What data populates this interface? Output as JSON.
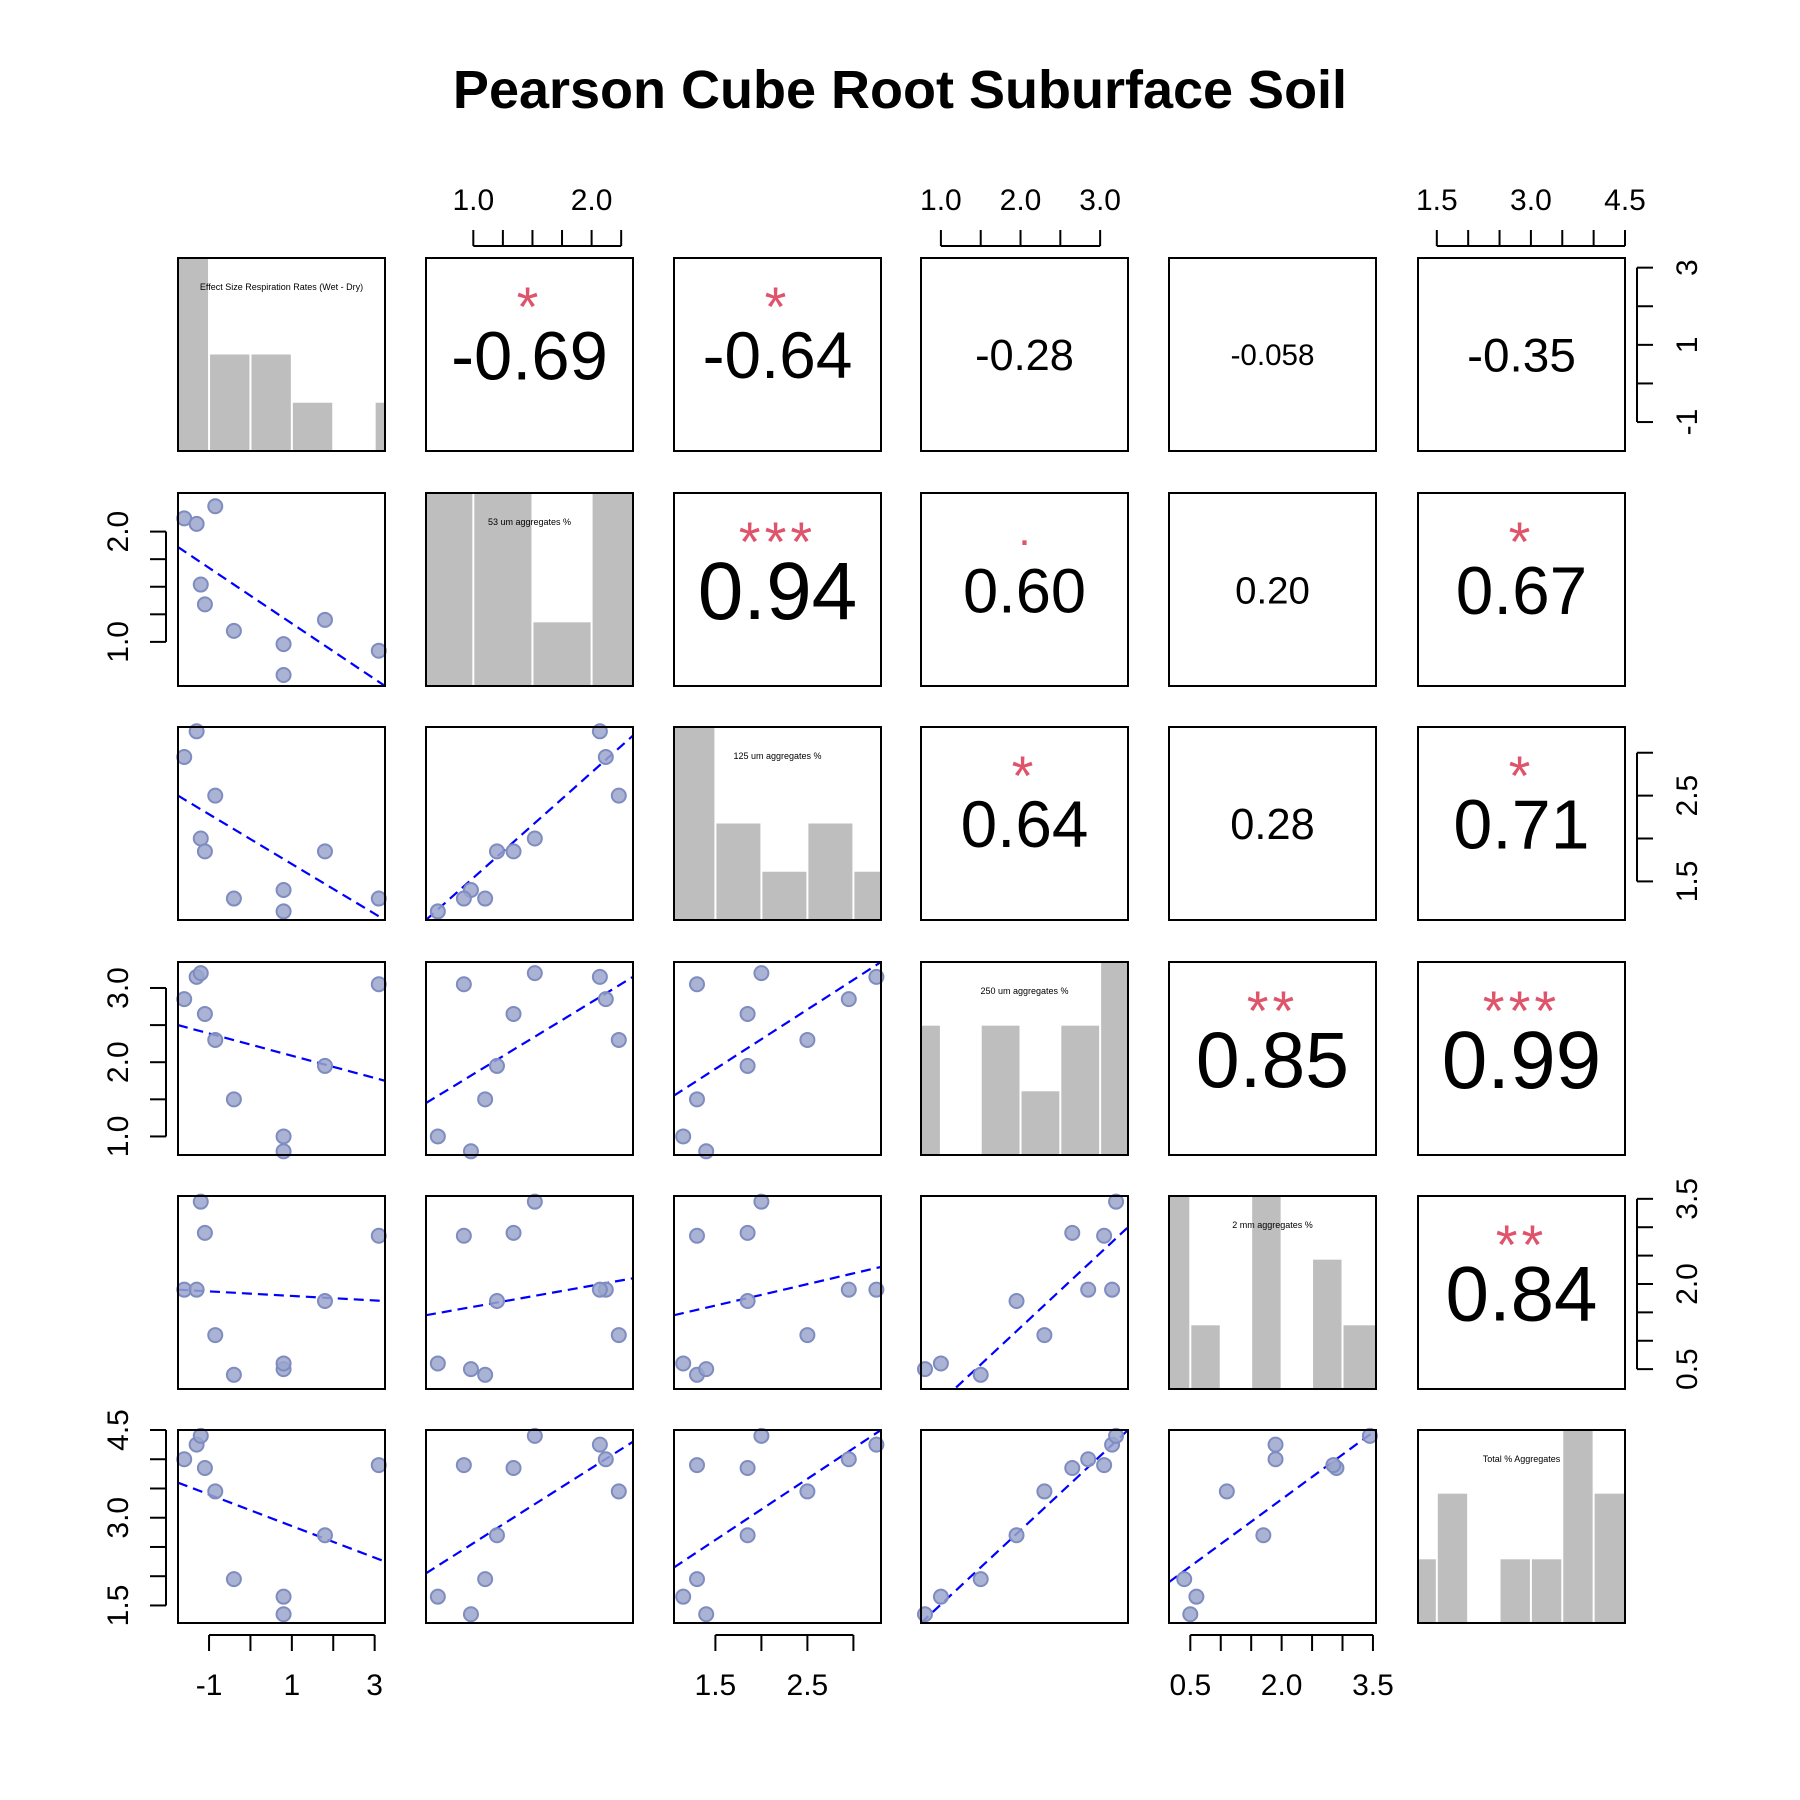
{
  "title": "Pearson Cube Root Suburface Soil",
  "colors": {
    "bar": "#BEBEBE",
    "point_fill": "#9BA6CC",
    "point_stroke": "#7E8CBF",
    "fit_line": "#0000FF",
    "stars": "#DF536B",
    "axis": "#000000"
  },
  "chart_data": {
    "type": "scatter",
    "subtype": "pairs-correlation-matrix",
    "variables": [
      "Effect Size Respiration Rates (Wet - Dry)",
      "53 um aggregates %",
      "125 um aggregates %",
      "250 um aggregates %",
      "2 mm aggregates %",
      "Total % Aggregates"
    ],
    "ranges": [
      [
        -1.75,
        3.25
      ],
      [
        0.6,
        2.35
      ],
      [
        1.05,
        3.3
      ],
      [
        0.75,
        3.35
      ],
      [
        0.15,
        3.55
      ],
      [
        1.2,
        4.5
      ]
    ],
    "axis_ticks": {
      "top": [
        {
          "col": 1,
          "ticks": [
            1.0,
            1.25,
            1.5,
            1.75,
            2.0,
            2.25
          ],
          "labels": [
            "1.0",
            "2.0"
          ],
          "label_values": [
            1.0,
            2.0
          ]
        },
        {
          "col": 3,
          "ticks": [
            1.0,
            1.5,
            2.0,
            2.5,
            3.0
          ],
          "labels": [
            "1.0",
            "2.0",
            "3.0"
          ],
          "label_values": [
            1.0,
            2.0,
            3.0
          ]
        },
        {
          "col": 5,
          "ticks": [
            1.5,
            2.0,
            2.5,
            3.0,
            3.5,
            4.0,
            4.5
          ],
          "labels": [
            "1.5",
            "3.0",
            "4.5"
          ],
          "label_values": [
            1.5,
            3.0,
            4.5
          ]
        }
      ],
      "right": [
        {
          "row": 0,
          "ticks": [
            -1,
            0,
            1,
            2,
            3
          ],
          "labels": [
            "-1",
            "1",
            "3"
          ],
          "label_values": [
            -1,
            1,
            3
          ]
        },
        {
          "row": 2,
          "ticks": [
            1.5,
            2.0,
            2.5,
            3.0
          ],
          "labels": [
            "1.5",
            "2.5"
          ],
          "label_values": [
            1.5,
            2.5
          ]
        },
        {
          "row": 4,
          "ticks": [
            0.5,
            1.0,
            1.5,
            2.0,
            2.5,
            3.0,
            3.5
          ],
          "labels": [
            "0.5",
            "2.0",
            "3.5"
          ],
          "label_values": [
            0.5,
            2.0,
            3.5
          ]
        }
      ],
      "bottom": [
        {
          "col": 0,
          "ticks": [
            -1,
            0,
            1,
            2,
            3
          ],
          "labels": [
            "-1",
            "1",
            "3"
          ],
          "label_values": [
            -1,
            1,
            3
          ]
        },
        {
          "col": 2,
          "ticks": [
            1.5,
            2.0,
            2.5,
            3.0
          ],
          "labels": [
            "1.5",
            "2.5"
          ],
          "label_values": [
            1.5,
            2.5
          ]
        },
        {
          "col": 4,
          "ticks": [
            0.5,
            1.0,
            1.5,
            2.0,
            2.5,
            3.0,
            3.5
          ],
          "labels": [
            "0.5",
            "2.0",
            "3.5"
          ],
          "label_values": [
            0.5,
            2.0,
            3.5
          ]
        }
      ],
      "left": [
        {
          "row": 1,
          "ticks": [
            1.0,
            1.25,
            1.5,
            1.75,
            2.0
          ],
          "labels": [
            "1.0",
            "2.0"
          ],
          "label_values": [
            1.0,
            2.0
          ]
        },
        {
          "row": 3,
          "ticks": [
            1.0,
            1.5,
            2.0,
            2.5,
            3.0
          ],
          "labels": [
            "1.0",
            "2.0",
            "3.0"
          ],
          "label_values": [
            1.0,
            2.0,
            3.0
          ]
        },
        {
          "row": 5,
          "ticks": [
            1.5,
            2.0,
            2.5,
            3.0,
            3.5,
            4.0,
            4.5
          ],
          "labels": [
            "1.5",
            "3.0",
            "4.5"
          ],
          "label_values": [
            1.5,
            3.0,
            4.5
          ]
        }
      ]
    },
    "observations": [
      [
        -1.6,
        2.12,
        2.95,
        2.85,
        1.9,
        4.0
      ],
      [
        -1.3,
        2.07,
        3.25,
        3.15,
        1.9,
        4.25
      ],
      [
        -1.2,
        1.52,
        2.0,
        3.2,
        3.45,
        4.4
      ],
      [
        -1.1,
        1.34,
        1.85,
        2.65,
        2.9,
        3.85
      ],
      [
        -0.85,
        2.23,
        2.5,
        2.3,
        1.1,
        3.45
      ],
      [
        -0.4,
        1.1,
        1.3,
        1.5,
        0.4,
        1.95
      ],
      [
        0.8,
        0.98,
        1.4,
        0.8,
        0.5,
        1.35
      ],
      [
        0.8,
        0.7,
        1.15,
        1.0,
        0.6,
        1.65
      ],
      [
        1.8,
        1.2,
        1.85,
        1.95,
        1.7,
        2.7
      ],
      [
        3.1,
        0.92,
        1.3,
        3.05,
        2.85,
        3.9
      ]
    ],
    "fit_lines": [
      {
        "row": 1,
        "col": 0,
        "y_at_xmin": 1.86,
        "y_at_xmax": 0.6
      },
      {
        "row": 2,
        "col": 0,
        "y_at_xmin": 2.5,
        "y_at_xmax": 1.05
      },
      {
        "row": 2,
        "col": 1,
        "y_at_xmin": 1.05,
        "y_at_xmax": 3.2
      },
      {
        "row": 3,
        "col": 0,
        "y_at_xmin": 2.5,
        "y_at_xmax": 1.75
      },
      {
        "row": 3,
        "col": 1,
        "y_at_xmin": 1.45,
        "y_at_xmax": 3.15
      },
      {
        "row": 3,
        "col": 2,
        "y_at_xmin": 1.55,
        "y_at_xmax": 3.35
      },
      {
        "row": 4,
        "col": 0,
        "y_at_xmin": 1.9,
        "y_at_xmax": 1.7
      },
      {
        "row": 4,
        "col": 1,
        "y_at_xmin": 1.45,
        "y_at_xmax": 2.1
      },
      {
        "row": 4,
        "col": 2,
        "y_at_xmin": 1.45,
        "y_at_xmax": 2.3
      },
      {
        "row": 4,
        "col": 3,
        "y_at_xmin": -0.4,
        "y_at_xmax": 3.0
      },
      {
        "row": 5,
        "col": 0,
        "y_at_xmin": 3.6,
        "y_at_xmax": 2.25
      },
      {
        "row": 5,
        "col": 1,
        "y_at_xmin": 2.05,
        "y_at_xmax": 4.3
      },
      {
        "row": 5,
        "col": 2,
        "y_at_xmin": 2.15,
        "y_at_xmax": 4.5
      },
      {
        "row": 5,
        "col": 3,
        "y_at_xmin": 1.2,
        "y_at_xmax": 4.5
      },
      {
        "row": 5,
        "col": 4,
        "y_at_xmin": 1.9,
        "y_at_xmax": 4.5
      }
    ],
    "correlations": [
      {
        "row": 0,
        "col": 1,
        "r": "-0.69",
        "stars": "*"
      },
      {
        "row": 0,
        "col": 2,
        "r": "-0.64",
        "stars": "*"
      },
      {
        "row": 0,
        "col": 3,
        "r": "-0.28",
        "stars": ""
      },
      {
        "row": 0,
        "col": 4,
        "r": "-0.058",
        "stars": ""
      },
      {
        "row": 0,
        "col": 5,
        "r": "-0.35",
        "stars": ""
      },
      {
        "row": 1,
        "col": 2,
        "r": "0.94",
        "stars": "***"
      },
      {
        "row": 1,
        "col": 3,
        "r": "0.60",
        "stars": "."
      },
      {
        "row": 1,
        "col": 4,
        "r": "0.20",
        "stars": ""
      },
      {
        "row": 1,
        "col": 5,
        "r": "0.67",
        "stars": "*"
      },
      {
        "row": 2,
        "col": 3,
        "r": "0.64",
        "stars": "*"
      },
      {
        "row": 2,
        "col": 4,
        "r": "0.28",
        "stars": ""
      },
      {
        "row": 2,
        "col": 5,
        "r": "0.71",
        "stars": "*"
      },
      {
        "row": 3,
        "col": 4,
        "r": "0.85",
        "stars": "**"
      },
      {
        "row": 3,
        "col": 5,
        "r": "0.99",
        "stars": "***"
      },
      {
        "row": 4,
        "col": 5,
        "r": "0.84",
        "stars": "**"
      }
    ],
    "histograms": [
      {
        "bars": [
          {
            "x0": -1.75,
            "x1": -1.0,
            "h": 1.0
          },
          {
            "x0": -1.0,
            "x1": 0.0,
            "h": 0.5
          },
          {
            "x0": 0.0,
            "x1": 1.0,
            "h": 0.5
          },
          {
            "x0": 1.0,
            "x1": 2.0,
            "h": 0.25
          },
          {
            "x0": 3.0,
            "x1": 3.25,
            "h": 0.25
          }
        ]
      },
      {
        "bars": [
          {
            "x0": 0.6,
            "x1": 1.0,
            "h": 1.0
          },
          {
            "x0": 1.0,
            "x1": 1.5,
            "h": 1.0
          },
          {
            "x0": 1.5,
            "x1": 2.0,
            "h": 0.33
          },
          {
            "x0": 2.0,
            "x1": 2.35,
            "h": 1.0
          }
        ]
      },
      {
        "bars": [
          {
            "x0": 1.05,
            "x1": 1.5,
            "h": 1.0
          },
          {
            "x0": 1.5,
            "x1": 2.0,
            "h": 0.5
          },
          {
            "x0": 2.0,
            "x1": 2.5,
            "h": 0.25
          },
          {
            "x0": 2.5,
            "x1": 3.0,
            "h": 0.5
          },
          {
            "x0": 3.0,
            "x1": 3.3,
            "h": 0.25
          }
        ]
      },
      {
        "bars": [
          {
            "x0": 0.75,
            "x1": 1.0,
            "h": 0.67
          },
          {
            "x0": 1.5,
            "x1": 2.0,
            "h": 0.67
          },
          {
            "x0": 2.0,
            "x1": 2.5,
            "h": 0.33
          },
          {
            "x0": 2.5,
            "x1": 3.0,
            "h": 0.67
          },
          {
            "x0": 3.0,
            "x1": 3.35,
            "h": 1.0
          }
        ]
      },
      {
        "bars": [
          {
            "x0": 0.15,
            "x1": 0.5,
            "h": 1.0
          },
          {
            "x0": 0.5,
            "x1": 1.0,
            "h": 0.33
          },
          {
            "x0": 1.5,
            "x1": 2.0,
            "h": 1.0
          },
          {
            "x0": 2.5,
            "x1": 3.0,
            "h": 0.67
          },
          {
            "x0": 3.0,
            "x1": 3.55,
            "h": 0.33
          }
        ]
      },
      {
        "bars": [
          {
            "x0": 1.2,
            "x1": 1.5,
            "h": 0.33
          },
          {
            "x0": 1.5,
            "x1": 2.0,
            "h": 0.67
          },
          {
            "x0": 2.5,
            "x1": 3.0,
            "h": 0.33
          },
          {
            "x0": 3.0,
            "x1": 3.5,
            "h": 0.33
          },
          {
            "x0": 3.5,
            "x1": 4.0,
            "h": 1.0
          },
          {
            "x0": 4.0,
            "x1": 4.5,
            "h": 0.67
          }
        ]
      }
    ]
  }
}
